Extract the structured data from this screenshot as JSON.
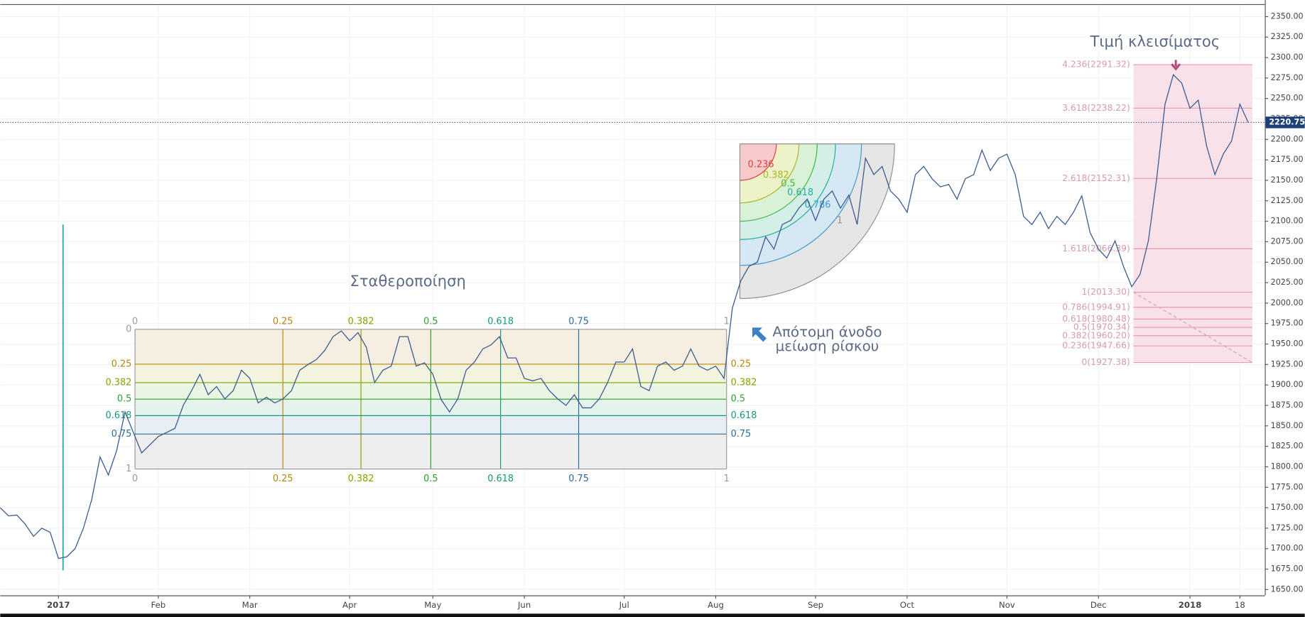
{
  "chart_data": {
    "type": "line",
    "series": [
      {
        "color": "#3b5b8f",
        "values": [
          1750,
          1740,
          1741,
          1730,
          1715,
          1725,
          1720,
          1688,
          1690,
          1700,
          1725,
          1760,
          1812,
          1790,
          1820,
          1867,
          1842,
          1817,
          1827,
          1837,
          1842,
          1847,
          1875,
          1893,
          1913,
          1888,
          1898,
          1883,
          1893,
          1918,
          1908,
          1878,
          1885,
          1878,
          1883,
          1893,
          1918,
          1925,
          1931,
          1942,
          1959,
          1966,
          1954,
          1964,
          1946,
          1903,
          1918,
          1923,
          1959,
          1959,
          1923,
          1927,
          1913,
          1882,
          1867,
          1883,
          1918,
          1928,
          1944,
          1949,
          1959,
          1933,
          1933,
          1908,
          1905,
          1908,
          1893,
          1883,
          1875,
          1888,
          1872,
          1872,
          1883,
          1903,
          1928,
          1928,
          1944,
          1898,
          1893,
          1923,
          1928,
          1918,
          1923,
          1944,
          1923,
          1918,
          1923,
          1908,
          1994,
          2027,
          2045,
          2050,
          2081,
          2066,
          2096,
          2101,
          2116,
          2127,
          2101,
          2127,
          2137,
          2116,
          2132,
          2096,
          2177,
          2157,
          2167,
          2137,
          2127,
          2111,
          2157,
          2167,
          2152,
          2142,
          2145,
          2127,
          2152,
          2157,
          2187,
          2162,
          2177,
          2182,
          2157,
          2106,
          2096,
          2111,
          2091,
          2106,
          2096,
          2111,
          2131,
          2086,
          2066,
          2055,
          2076,
          2045,
          2020,
          2035,
          2076,
          2152,
          2243,
          2279,
          2269,
          2238,
          2248,
          2192,
          2157,
          2182,
          2198,
          2243,
          2220.75
        ]
      }
    ],
    "categories": [
      null,
      null,
      null,
      null,
      null,
      null,
      null,
      "2017",
      null,
      null,
      null,
      null,
      null,
      null,
      null,
      null,
      null,
      null,
      null,
      "Feb",
      null,
      null,
      null,
      null,
      null,
      null,
      null,
      null,
      null,
      null,
      "Mar",
      null,
      null,
      null,
      null,
      null,
      null,
      null,
      null,
      null,
      null,
      null,
      "Apr",
      null,
      null,
      null,
      null,
      null,
      null,
      null,
      null,
      null,
      "May",
      null,
      null,
      null,
      null,
      null,
      null,
      null,
      null,
      null,
      null,
      "Jun",
      null,
      null,
      null,
      null,
      null,
      null,
      null,
      null,
      null,
      null,
      null,
      "Jul",
      null,
      null,
      null,
      null,
      null,
      null,
      null,
      null,
      null,
      null,
      "Aug",
      null,
      null,
      null,
      null,
      null,
      null,
      null,
      null,
      null,
      null,
      null,
      "Sep",
      null,
      null,
      null,
      null,
      null,
      null,
      null,
      null,
      null,
      null,
      "Oct",
      null,
      null,
      null,
      null,
      null,
      null,
      null,
      null,
      null,
      null,
      null,
      "Nov",
      null,
      null,
      null,
      null,
      null,
      null,
      null,
      null,
      null,
      null,
      "Dec",
      null,
      null,
      null,
      null,
      null,
      null,
      null,
      null,
      null,
      null,
      "2018",
      null,
      null,
      null,
      null,
      null,
      "18",
      null
    ],
    "ylim": [
      1650,
      2350
    ],
    "yticks": [
      {
        "value": 1650,
        "label": "1650.00"
      },
      {
        "value": 1675,
        "label": "1675.00"
      },
      {
        "value": 1700,
        "label": "1700.00"
      },
      {
        "value": 1725,
        "label": "1725.00"
      },
      {
        "value": 1750,
        "label": "1750.00"
      },
      {
        "value": 1775,
        "label": "1775.00"
      },
      {
        "value": 1800,
        "label": "1800.00"
      },
      {
        "value": 1825,
        "label": "1825.00"
      },
      {
        "value": 1850,
        "label": "1850.00"
      },
      {
        "value": 1875,
        "label": "1875.00"
      },
      {
        "value": 1900,
        "label": "1900.00"
      },
      {
        "value": 1925,
        "label": "1925.00"
      },
      {
        "value": 1950,
        "label": "1950.00"
      },
      {
        "value": 1975,
        "label": "1975.00"
      },
      {
        "value": 2000,
        "label": "2000.00"
      },
      {
        "value": 2025,
        "label": "2025.00"
      },
      {
        "value": 2050,
        "label": "2050.00"
      },
      {
        "value": 2075,
        "label": "2075.00"
      },
      {
        "value": 2100,
        "label": "2100.00"
      },
      {
        "value": 2125,
        "label": "2125.00"
      },
      {
        "value": 2150,
        "label": "2150.00"
      },
      {
        "value": 2175,
        "label": "2175.00"
      },
      {
        "value": 2200,
        "label": "2200.00"
      },
      {
        "value": 2225,
        "label": "2225.00"
      },
      {
        "value": 2250,
        "label": "2250.00"
      },
      {
        "value": 2275,
        "label": "2275.00"
      },
      {
        "value": 2300,
        "label": "2300.00"
      },
      {
        "value": 2325,
        "label": "2325.00"
      },
      {
        "value": 2350,
        "label": "2350.00"
      }
    ],
    "grid": true,
    "last_price": 2220.75,
    "annotations": [
      "Σταθεροποίηση",
      "Απότομη άνοδο",
      "μείωση ρίσκου",
      "Τιμή κλεισίματος"
    ],
    "gann_box": {
      "levels": [
        {
          "value": 0,
          "color": "#999999"
        },
        {
          "value": 0.25,
          "color": "#b8860b"
        },
        {
          "value": 0.382,
          "color": "#8aa000"
        },
        {
          "value": 0.5,
          "color": "#2e9e2e"
        },
        {
          "value": 0.618,
          "color": "#17987a"
        },
        {
          "value": 0.75,
          "color": "#2a6c9c"
        },
        {
          "value": 1,
          "color": "#999999"
        }
      ]
    },
    "fib_arcs": {
      "levels": [
        {
          "value": 0.236,
          "color": "#d94040"
        },
        {
          "value": 0.382,
          "color": "#a8b820"
        },
        {
          "value": 0.5,
          "color": "#40b840"
        },
        {
          "value": 0.618,
          "color": "#20b09a"
        },
        {
          "value": 0.786,
          "color": "#3c9ad0"
        },
        {
          "value": 1,
          "color": "#909090"
        }
      ]
    },
    "fib_extension": {
      "color": "#e39ab4",
      "levels": [
        {
          "value": 2291.32,
          "label": "4.236(2291.32)"
        },
        {
          "value": 2238.22,
          "label": "3.618(2238.22)"
        },
        {
          "value": 2152.31,
          "label": "2.618(2152.31)"
        },
        {
          "value": 2066.39,
          "label": "1.618(2066.39)"
        },
        {
          "value": 2013.3,
          "label": "1(2013.30)"
        },
        {
          "value": 1994.91,
          "label": "0.786(1994.91)"
        },
        {
          "value": 1980.48,
          "label": "0.618(1980.48)"
        },
        {
          "value": 1970.34,
          "label": "0.5(1970.34)"
        },
        {
          "value": 1960.2,
          "label": "0.382(1960.20)"
        },
        {
          "value": 1947.66,
          "label": "0.236(1947.66)"
        },
        {
          "value": 1927.38,
          "label": "0(1927.38)"
        }
      ]
    }
  }
}
